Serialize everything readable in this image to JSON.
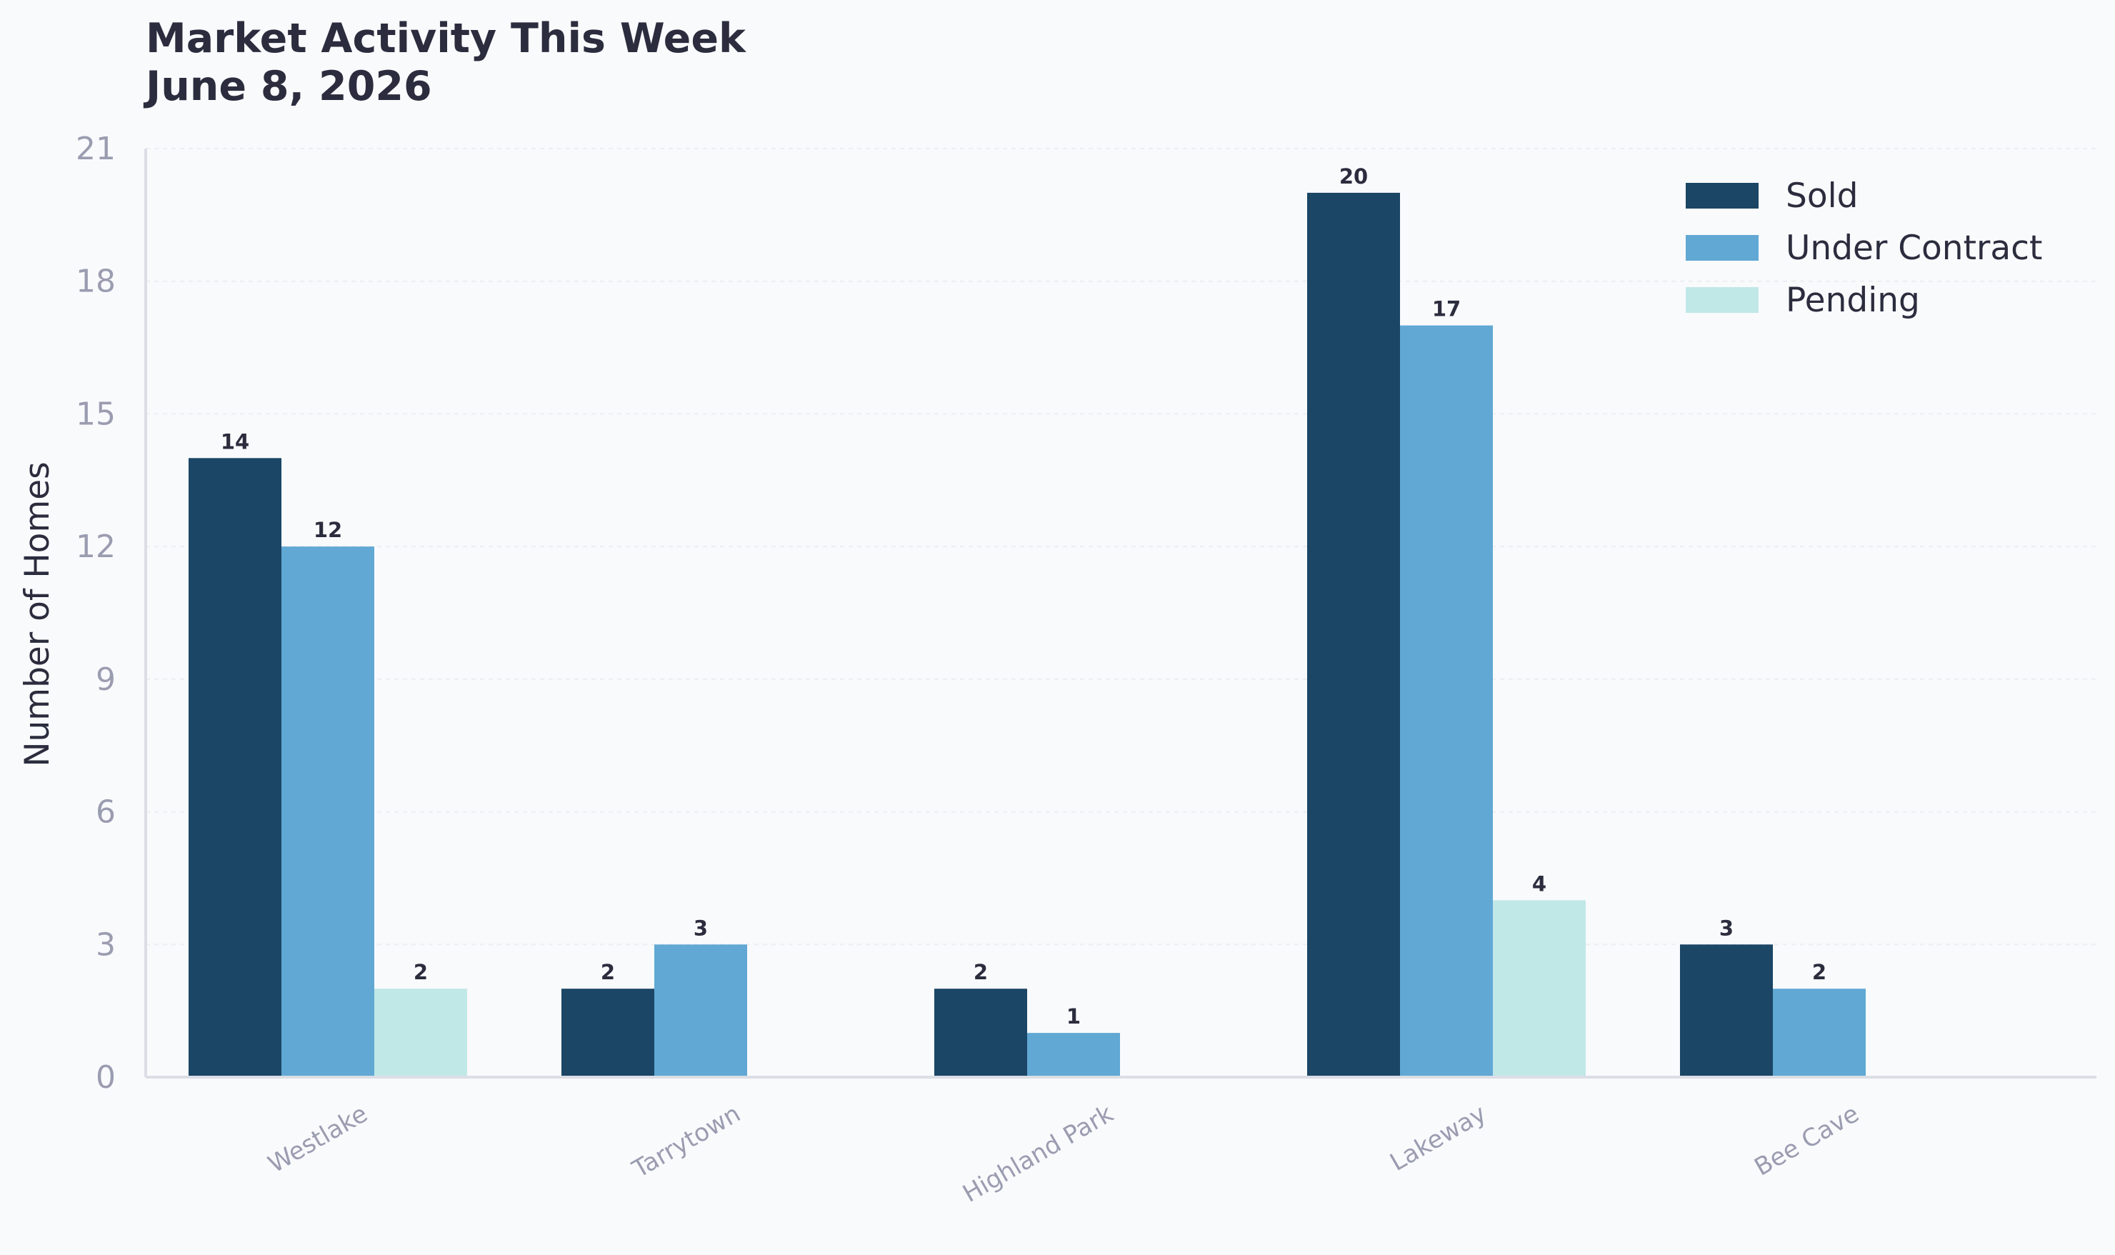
{
  "chart_data": {
    "type": "bar",
    "title": "Market Activity This Week",
    "subtitle": "June 8, 2026",
    "xlabel": "",
    "ylabel": "Number of Homes",
    "categories": [
      "Westlake",
      "Tarrytown",
      "Highland Park",
      "Lakeway",
      "Bee Cave"
    ],
    "series": [
      {
        "name": "Sold",
        "color": "#1b4665",
        "values": [
          14,
          2,
          2,
          20,
          3
        ]
      },
      {
        "name": "Under Contract",
        "color": "#61a8d4",
        "values": [
          12,
          3,
          1,
          17,
          2
        ]
      },
      {
        "name": "Pending",
        "color": "#c0e8e7",
        "values": [
          2,
          0,
          0,
          4,
          0
        ]
      }
    ],
    "ylim": [
      0,
      21
    ],
    "yticks": [
      0,
      3,
      6,
      9,
      12,
      15,
      18,
      21
    ],
    "grid": true,
    "legend_position": "top-right"
  }
}
